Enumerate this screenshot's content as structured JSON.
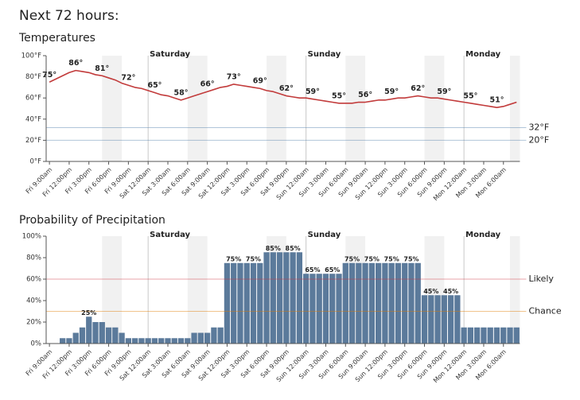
{
  "title": "Next 72 hours:",
  "chart_data": [
    {
      "type": "line",
      "title": "Temperatures",
      "color": "#c23b3b",
      "categories": [
        "Fri 9:00am",
        null,
        null,
        "Fri 12:00pm",
        null,
        null,
        "Fri 3:00pm",
        null,
        null,
        "Fri 6:00pm",
        null,
        null,
        "Fri 9:00pm",
        null,
        null,
        "Sat 12:00am",
        null,
        null,
        "Sat 3:00am",
        null,
        null,
        "Sat 6:00am",
        null,
        null,
        "Sat 9:00am",
        null,
        null,
        "Sat 12:00pm",
        null,
        null,
        "Sat 3:00pm",
        null,
        null,
        "Sat 6:00pm",
        null,
        null,
        "Sat 9:00pm",
        null,
        null,
        "Sun 12:00am",
        null,
        null,
        "Sun 3:00am",
        null,
        null,
        "Sun 6:00am",
        null,
        null,
        "Sun 9:00am",
        null,
        null,
        "Sun 12:00pm",
        null,
        null,
        "Sun 3:00pm",
        null,
        null,
        "Sun 6:00pm",
        null,
        null,
        "Sun 9:00pm",
        null,
        null,
        "Mon 12:00am",
        null,
        null,
        "Mon 3:00am",
        null,
        null,
        "Mon 6:00am",
        null,
        null
      ],
      "values": [
        75,
        78,
        81,
        84,
        86,
        85,
        84,
        82,
        81,
        79,
        77,
        74,
        72,
        70,
        69,
        67,
        65,
        63,
        62,
        60,
        58,
        60,
        62,
        64,
        66,
        68,
        70,
        71,
        73,
        72,
        71,
        70,
        69,
        67,
        66,
        64,
        62,
        61,
        60,
        60,
        59,
        58,
        57,
        56,
        55,
        55,
        55,
        56,
        56,
        57,
        58,
        58,
        59,
        60,
        60,
        61,
        62,
        61,
        60,
        60,
        59,
        58,
        57,
        56,
        55,
        54,
        53,
        52,
        51,
        52,
        54,
        56
      ],
      "value_labels": [
        "75°",
        null,
        null,
        null,
        "86°",
        null,
        null,
        null,
        "81°",
        null,
        null,
        null,
        "72°",
        null,
        null,
        null,
        "65°",
        null,
        null,
        null,
        "58°",
        null,
        null,
        null,
        "66°",
        null,
        null,
        null,
        "73°",
        null,
        null,
        null,
        "69°",
        null,
        null,
        null,
        "62°",
        null,
        null,
        null,
        "59°",
        null,
        null,
        null,
        "55°",
        null,
        null,
        null,
        "56°",
        null,
        null,
        null,
        "59°",
        null,
        null,
        null,
        "62°",
        null,
        null,
        null,
        "59°",
        null,
        null,
        null,
        "55°",
        null,
        null,
        null,
        "51°",
        null,
        null,
        null
      ],
      "ylim": [
        0,
        100
      ],
      "yticks": [
        {
          "value": 0,
          "label": "0°F"
        },
        {
          "value": 20,
          "label": "20°F"
        },
        {
          "value": 40,
          "label": "40°F"
        },
        {
          "value": 60,
          "label": "60°F"
        },
        {
          "value": 80,
          "label": "80°F"
        },
        {
          "value": 100,
          "label": "100°F"
        }
      ],
      "reference_lines": [
        {
          "value": 32,
          "label": "32°F",
          "color": "#4f7fab"
        },
        {
          "value": 20,
          "label": "20°F",
          "color": "#4f7fab"
        }
      ],
      "day_markers": [
        {
          "label": "Saturday",
          "x": "Sat 12:00am"
        },
        {
          "label": "Sunday",
          "x": "Sun 12:00am"
        },
        {
          "label": "Monday",
          "x": "Mon 12:00am"
        }
      ]
    },
    {
      "type": "bar",
      "title": "Probability of Precipitation",
      "color": "#5b7a9b",
      "categories": [
        "Fri 9:00am",
        null,
        null,
        "Fri 12:00pm",
        null,
        null,
        "Fri 3:00pm",
        null,
        null,
        "Fri 6:00pm",
        null,
        null,
        "Fri 9:00pm",
        null,
        null,
        "Sat 12:00am",
        null,
        null,
        "Sat 3:00am",
        null,
        null,
        "Sat 6:00am",
        null,
        null,
        "Sat 9:00am",
        null,
        null,
        "Sat 12:00pm",
        null,
        null,
        "Sat 3:00pm",
        null,
        null,
        "Sat 6:00pm",
        null,
        null,
        "Sat 9:00pm",
        null,
        null,
        "Sun 12:00am",
        null,
        null,
        "Sun 3:00am",
        null,
        null,
        "Sun 6:00am",
        null,
        null,
        "Sun 9:00am",
        null,
        null,
        "Sun 12:00pm",
        null,
        null,
        "Sun 3:00pm",
        null,
        null,
        "Sun 6:00pm",
        null,
        null,
        "Sun 9:00pm",
        null,
        null,
        "Mon 12:00am",
        null,
        null,
        "Mon 3:00am",
        null,
        null,
        "Mon 6:00am",
        null,
        null
      ],
      "values": [
        0,
        0,
        5,
        5,
        10,
        15,
        25,
        20,
        20,
        15,
        15,
        10,
        5,
        5,
        5,
        5,
        5,
        5,
        5,
        5,
        5,
        5,
        10,
        10,
        10,
        15,
        15,
        75,
        75,
        75,
        75,
        75,
        75,
        85,
        85,
        85,
        85,
        85,
        85,
        65,
        65,
        65,
        65,
        65,
        65,
        75,
        75,
        75,
        75,
        75,
        75,
        75,
        75,
        75,
        75,
        75,
        75,
        45,
        45,
        45,
        45,
        45,
        45,
        15,
        15,
        15,
        15,
        15,
        15,
        15,
        15,
        15
      ],
      "value_labels": [
        null,
        null,
        null,
        null,
        null,
        null,
        "25%",
        null,
        null,
        null,
        null,
        null,
        null,
        null,
        null,
        null,
        null,
        null,
        null,
        null,
        null,
        null,
        null,
        null,
        null,
        null,
        null,
        null,
        "75%",
        null,
        null,
        "75%",
        null,
        null,
        "85%",
        null,
        null,
        "85%",
        null,
        null,
        "65%",
        null,
        null,
        "65%",
        null,
        null,
        "75%",
        null,
        null,
        "75%",
        null,
        null,
        "75%",
        null,
        null,
        "75%",
        null,
        null,
        "45%",
        null,
        null,
        "45%",
        null,
        null,
        null,
        null,
        null,
        null,
        null,
        null,
        null,
        null
      ],
      "ylim": [
        0,
        100
      ],
      "yticks": [
        {
          "value": 0,
          "label": "0%"
        },
        {
          "value": 20,
          "label": "20%"
        },
        {
          "value": 40,
          "label": "40%"
        },
        {
          "value": 60,
          "label": "60%"
        },
        {
          "value": 80,
          "label": "80%"
        },
        {
          "value": 100,
          "label": "100%"
        }
      ],
      "reference_lines": [
        {
          "value": 60,
          "label": "Likely",
          "color": "#d0343f"
        },
        {
          "value": 30,
          "label": "Chance",
          "color": "#e07b00"
        }
      ],
      "day_markers": [
        {
          "label": "Saturday",
          "x": "Sat 12:00am"
        },
        {
          "label": "Sunday",
          "x": "Sun 12:00am"
        },
        {
          "label": "Monday",
          "x": "Mon 12:00am"
        }
      ]
    }
  ]
}
